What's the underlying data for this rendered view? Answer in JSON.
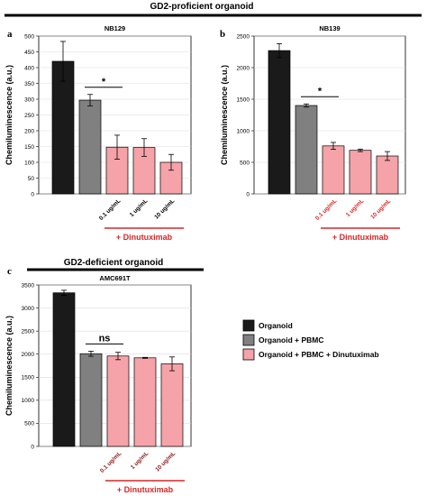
{
  "headers": {
    "top": "GD2-proficient organoid",
    "bottom": "GD2-deficient organoid"
  },
  "legend": {
    "items": [
      {
        "label": "Organoid",
        "color": "#1a1a1a"
      },
      {
        "label": "Organoid + PBMC",
        "color": "#808080"
      },
      {
        "label": "Organoid + PBMC + Dinutuximab",
        "color": "#f5a3a8"
      }
    ]
  },
  "colors": {
    "organoid": "#1a1a1a",
    "pbmc": "#808080",
    "dinutuximab": "#f5a3a8",
    "red_label": "#d62728"
  },
  "chart_data": [
    {
      "panel": "a",
      "type": "bar",
      "title": "NB129",
      "ylabel": "Chemiluminescence (a.u.)",
      "ylim": [
        0,
        500
      ],
      "yticks": [
        0,
        50,
        100,
        150,
        200,
        250,
        300,
        350,
        400,
        450,
        500
      ],
      "grid": true,
      "categories": [
        "",
        "",
        "0.1 ug/mL",
        "1 ug/mL",
        "10 ug/mL"
      ],
      "values": [
        420,
        297,
        148,
        147,
        100
      ],
      "errors": [
        63,
        18,
        38,
        28,
        25
      ],
      "bar_colors": [
        "#1a1a1a",
        "#808080",
        "#f5a3a8",
        "#f5a3a8",
        "#f5a3a8"
      ],
      "group_label": "+ Dinutuximab",
      "significance": {
        "label": "*",
        "from": 1,
        "to": 2
      }
    },
    {
      "panel": "b",
      "type": "bar",
      "title": "NB139",
      "ylabel": "Chemiluminescence (a.u.)",
      "ylim": [
        0,
        2500
      ],
      "yticks": [
        0,
        500,
        1000,
        1500,
        2000,
        2500
      ],
      "grid": true,
      "categories": [
        "",
        "",
        "0.1 ug/mL",
        "1 ug/mL",
        "10 ug/mL"
      ],
      "values": [
        2270,
        1400,
        760,
        690,
        600
      ],
      "errors": [
        110,
        25,
        55,
        20,
        70
      ],
      "bar_colors": [
        "#1a1a1a",
        "#808080",
        "#f5a3a8",
        "#f5a3a8",
        "#f5a3a8"
      ],
      "group_label": "+ Dinutuximab",
      "significance": {
        "label": "*",
        "from": 1,
        "to": 2
      }
    },
    {
      "panel": "c",
      "type": "bar",
      "title": "AMC691T",
      "ylabel": "Chemiluminescence (a.u.)",
      "ylim": [
        0,
        3500
      ],
      "yticks": [
        0,
        500,
        1000,
        1500,
        2000,
        2500,
        3000,
        3500
      ],
      "grid": true,
      "categories": [
        "",
        "",
        "0.1 ug/mL",
        "1 ug/mL",
        "10 ug/mL"
      ],
      "values": [
        3330,
        2010,
        1960,
        1920,
        1790
      ],
      "errors": [
        55,
        55,
        80,
        10,
        150
      ],
      "bar_colors": [
        "#1a1a1a",
        "#808080",
        "#f5a3a8",
        "#f5a3a8",
        "#f5a3a8"
      ],
      "group_label": "+ Dinutuximab",
      "significance": {
        "label": "ns",
        "from": 1,
        "to": 2
      }
    }
  ]
}
